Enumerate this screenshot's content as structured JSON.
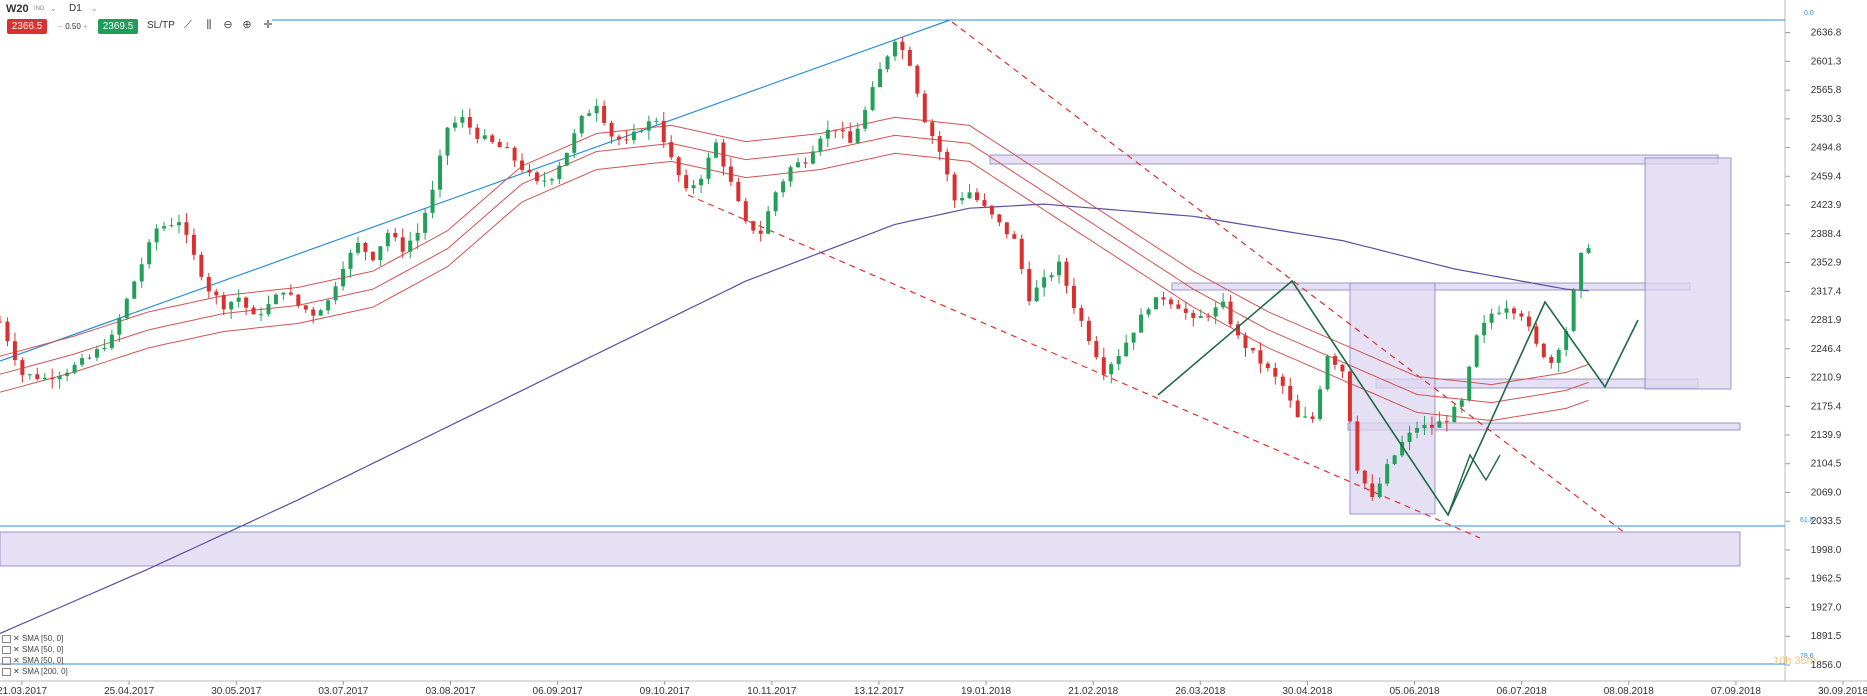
{
  "toolbar": {
    "symbol": "W20",
    "symbol_sub": "IND",
    "timeframe": "D1",
    "sell_price": "2366.5",
    "spread": "0.50",
    "buy_price": "2369.5",
    "sltp_label": "SL/TP",
    "icons": [
      "line-chart-icon",
      "indicators-icon",
      "zoom-out-icon",
      "zoom-in-icon",
      "crosshair-icon"
    ]
  },
  "indicators": [
    "SMA [50, 0]",
    "SMA [50, 0]",
    "SMA [50, 0]",
    "SMA [200, 0]"
  ],
  "fib_labels": {
    "top": "0.0",
    "mid": "61.8",
    "bottom": "78.6"
  },
  "watermark": "10h 36m",
  "colors": {
    "up": "#22a05a",
    "down": "#d9312f",
    "trend": "#2b8fd6",
    "sma200": "#5b4fa0",
    "sma50": "#d25454",
    "zone": "#dcd6f0",
    "zigzag": "#1f6a44"
  },
  "chart_data": {
    "type": "candlestick",
    "ylim": [
      1856.0,
      2640.0
    ],
    "y_ticks": [
      "2636.8",
      "2601.3",
      "2565.8",
      "2530.3",
      "2494.8",
      "2459.4",
      "2423.9",
      "2388.4",
      "2352.9",
      "2317.4",
      "2281.9",
      "2246.4",
      "2210.9",
      "2175.4",
      "2139.9",
      "2104.5",
      "2069.0",
      "2033.5",
      "1998.0",
      "1962.5",
      "1927.0",
      "1891.5",
      "1856.0"
    ],
    "x_ticks": [
      "21.03.2017",
      "25.04.2017",
      "30.05.2017",
      "03.07.2017",
      "03.08.2017",
      "06.09.2017",
      "09.10.2017",
      "10.11.2017",
      "13.12.2017",
      "19.01.2018",
      "21.02.2018",
      "26.03.2018",
      "30.04.2018",
      "05.06.2018",
      "06.07.2018",
      "08.08.2018",
      "07.09.2018",
      "30.09.2018"
    ],
    "price_path": [
      [
        0,
        2280
      ],
      [
        3,
        2215
      ],
      [
        6,
        2210
      ],
      [
        9,
        2220
      ],
      [
        12,
        2235
      ],
      [
        15,
        2260
      ],
      [
        18,
        2330
      ],
      [
        21,
        2395
      ],
      [
        24,
        2405
      ],
      [
        26,
        2360
      ],
      [
        28,
        2320
      ],
      [
        30,
        2300
      ],
      [
        32,
        2310
      ],
      [
        34,
        2285
      ],
      [
        36,
        2300
      ],
      [
        38,
        2320
      ],
      [
        40,
        2300
      ],
      [
        42,
        2290
      ],
      [
        44,
        2305
      ],
      [
        46,
        2350
      ],
      [
        48,
        2375
      ],
      [
        50,
        2360
      ],
      [
        52,
        2390
      ],
      [
        54,
        2370
      ],
      [
        56,
        2390
      ],
      [
        58,
        2440
      ],
      [
        60,
        2520
      ],
      [
        62,
        2530
      ],
      [
        64,
        2510
      ],
      [
        66,
        2500
      ],
      [
        68,
        2490
      ],
      [
        70,
        2470
      ],
      [
        72,
        2450
      ],
      [
        74,
        2460
      ],
      [
        76,
        2490
      ],
      [
        78,
        2530
      ],
      [
        80,
        2550
      ],
      [
        82,
        2510
      ],
      [
        84,
        2500
      ],
      [
        86,
        2520
      ],
      [
        88,
        2530
      ],
      [
        90,
        2480
      ],
      [
        92,
        2440
      ],
      [
        94,
        2460
      ],
      [
        96,
        2500
      ],
      [
        98,
        2450
      ],
      [
        100,
        2400
      ],
      [
        102,
        2390
      ],
      [
        104,
        2440
      ],
      [
        106,
        2470
      ],
      [
        108,
        2480
      ],
      [
        110,
        2510
      ],
      [
        112,
        2520
      ],
      [
        114,
        2500
      ],
      [
        116,
        2540
      ],
      [
        118,
        2590
      ],
      [
        120,
        2630
      ],
      [
        122,
        2600
      ],
      [
        124,
        2530
      ],
      [
        126,
        2490
      ],
      [
        128,
        2430
      ],
      [
        130,
        2440
      ],
      [
        132,
        2420
      ],
      [
        134,
        2400
      ],
      [
        136,
        2380
      ],
      [
        138,
        2310
      ],
      [
        140,
        2330
      ],
      [
        142,
        2350
      ],
      [
        144,
        2300
      ],
      [
        146,
        2260
      ],
      [
        148,
        2220
      ],
      [
        150,
        2240
      ],
      [
        152,
        2270
      ],
      [
        154,
        2300
      ],
      [
        156,
        2310
      ],
      [
        158,
        2300
      ],
      [
        160,
        2280
      ],
      [
        162,
        2290
      ],
      [
        164,
        2300
      ],
      [
        166,
        2260
      ],
      [
        168,
        2240
      ],
      [
        170,
        2220
      ],
      [
        172,
        2200
      ],
      [
        174,
        2160
      ],
      [
        176,
        2160
      ],
      [
        178,
        2240
      ],
      [
        180,
        2220
      ],
      [
        182,
        2100
      ],
      [
        184,
        2060
      ],
      [
        186,
        2100
      ],
      [
        188,
        2130
      ],
      [
        190,
        2150
      ],
      [
        192,
        2150
      ],
      [
        194,
        2160
      ],
      [
        196,
        2180
      ],
      [
        198,
        2260
      ],
      [
        200,
        2290
      ],
      [
        202,
        2300
      ],
      [
        204,
        2290
      ],
      [
        206,
        2250
      ],
      [
        208,
        2230
      ],
      [
        210,
        2270
      ],
      [
        212,
        2360
      ],
      [
        213,
        2375
      ]
    ],
    "sma200": [
      [
        0,
        1895
      ],
      [
        20,
        1975
      ],
      [
        40,
        2060
      ],
      [
        60,
        2150
      ],
      [
        80,
        2240
      ],
      [
        100,
        2330
      ],
      [
        120,
        2400
      ],
      [
        130,
        2420
      ],
      [
        140,
        2425
      ],
      [
        160,
        2410
      ],
      [
        180,
        2380
      ],
      [
        195,
        2345
      ],
      [
        210,
        2320
      ],
      [
        213,
        2318
      ]
    ],
    "sma50": [
      [
        0,
        2215
      ],
      [
        10,
        2240
      ],
      [
        20,
        2270
      ],
      [
        30,
        2290
      ],
      [
        40,
        2300
      ],
      [
        50,
        2320
      ],
      [
        60,
        2370
      ],
      [
        70,
        2450
      ],
      [
        80,
        2490
      ],
      [
        90,
        2500
      ],
      [
        100,
        2480
      ],
      [
        110,
        2490
      ],
      [
        120,
        2510
      ],
      [
        130,
        2500
      ],
      [
        140,
        2440
      ],
      [
        150,
        2380
      ],
      [
        160,
        2320
      ],
      [
        170,
        2270
      ],
      [
        180,
        2230
      ],
      [
        190,
        2190
      ],
      [
        200,
        2180
      ],
      [
        210,
        2195
      ],
      [
        213,
        2205
      ]
    ]
  }
}
